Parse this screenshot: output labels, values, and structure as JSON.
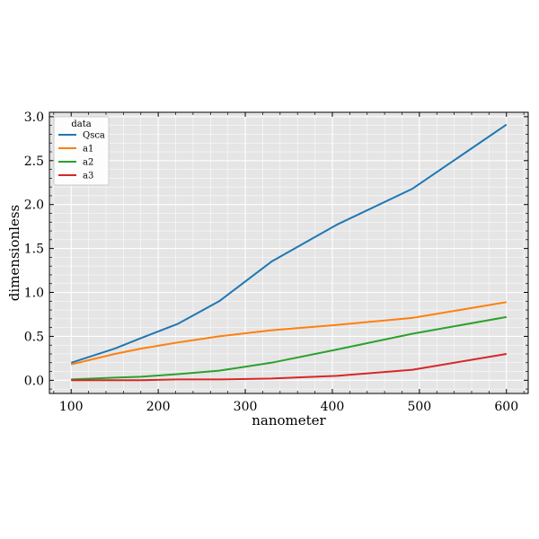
{
  "chart_data": {
    "type": "line",
    "title": "",
    "xlabel": "nanometer",
    "ylabel": "dimensionless",
    "xlim": [
      75,
      625
    ],
    "ylim": [
      -0.15,
      3.05
    ],
    "xticks": [
      100,
      200,
      300,
      400,
      500,
      600
    ],
    "yticks": [
      0.0,
      0.5,
      1.0,
      1.5,
      2.0,
      2.5,
      3.0
    ],
    "ytick_labels": [
      "0.0",
      "0.5",
      "1.0",
      "1.5",
      "2.0",
      "2.5",
      "3.0"
    ],
    "grid": true,
    "background": "#e5e5e5",
    "legend": {
      "title": "data",
      "placement": "top-left"
    },
    "x": [
      100,
      150,
      180,
      222,
      270,
      330,
      405,
      492,
      600
    ],
    "series": [
      {
        "name": "Qsca",
        "color": "#1f77b4",
        "values": [
          0.2,
          0.36,
          0.48,
          0.64,
          0.9,
          1.35,
          1.77,
          2.18,
          2.91
        ]
      },
      {
        "name": "a1",
        "color": "#ff7f0e",
        "values": [
          0.18,
          0.3,
          0.36,
          0.43,
          0.5,
          0.57,
          0.63,
          0.71,
          0.89
        ]
      },
      {
        "name": "a2",
        "color": "#2ca02c",
        "values": [
          0.01,
          0.03,
          0.04,
          0.07,
          0.11,
          0.2,
          0.35,
          0.53,
          0.72
        ]
      },
      {
        "name": "a3",
        "color": "#d62728",
        "values": [
          0.0,
          0.0,
          0.0,
          0.01,
          0.01,
          0.02,
          0.05,
          0.12,
          0.3
        ]
      }
    ]
  }
}
